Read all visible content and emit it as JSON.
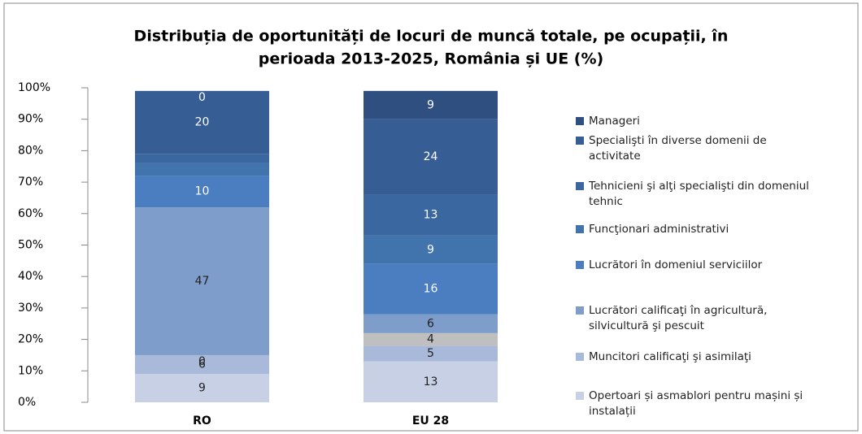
{
  "chart_data": {
    "type": "stacked_bar",
    "title": "Distribuția de oportunități de locuri de muncă totale, pe ocupații, în perioada 2013-2025, România și UE (%)",
    "categories": [
      "RO",
      "EU 28"
    ],
    "ylim": [
      0,
      100
    ],
    "yticks": [
      {
        "value": 0,
        "label": "0%"
      },
      {
        "value": 10,
        "label": "10%"
      },
      {
        "value": 20,
        "label": "20%"
      },
      {
        "value": 30,
        "label": "30%"
      },
      {
        "value": 40,
        "label": "40%"
      },
      {
        "value": 50,
        "label": "50%"
      },
      {
        "value": 60,
        "label": "60%"
      },
      {
        "value": 70,
        "label": "70%"
      },
      {
        "value": 80,
        "label": "80%"
      },
      {
        "value": 90,
        "label": "90%"
      },
      {
        "value": 100,
        "label": "100%"
      }
    ],
    "legend": "right",
    "series": [
      {
        "name": "Opertoari și asmablori pentru mașini și instalații",
        "color": "#c7d0e5",
        "values": [
          9,
          13
        ]
      },
      {
        "name": "Muncitori calificaţi şi asimilaţi",
        "color": "#a9b9da",
        "values": [
          6,
          5
        ]
      },
      {
        "name": null,
        "color": "#bfbfbf",
        "values": [
          0,
          4
        ]
      },
      {
        "name": "Lucrători calificaţi în agricultură, silvicultură şi pescuit",
        "color": "#7f9dca",
        "values": [
          47,
          6
        ]
      },
      {
        "name": "Lucrători în domeniul serviciilor",
        "color": "#4a7ec0",
        "values": [
          10,
          16
        ]
      },
      {
        "name": "Funcţionari administrativi",
        "color": "#4173ad",
        "values": [
          4,
          9
        ],
        "value_labels": [
          null,
          "9"
        ]
      },
      {
        "name": "Tehnicieni şi alţi specialişti din domeniul tehnic",
        "color": "#3b67a0",
        "values": [
          3,
          13
        ],
        "value_labels": [
          null,
          "13"
        ]
      },
      {
        "name": "Specialişti în diverse domenii de activitate",
        "color": "#365e94",
        "values": [
          20,
          24
        ]
      },
      {
        "name": "Manageri",
        "color": "#2f4f80",
        "values": [
          0,
          9
        ]
      }
    ]
  }
}
